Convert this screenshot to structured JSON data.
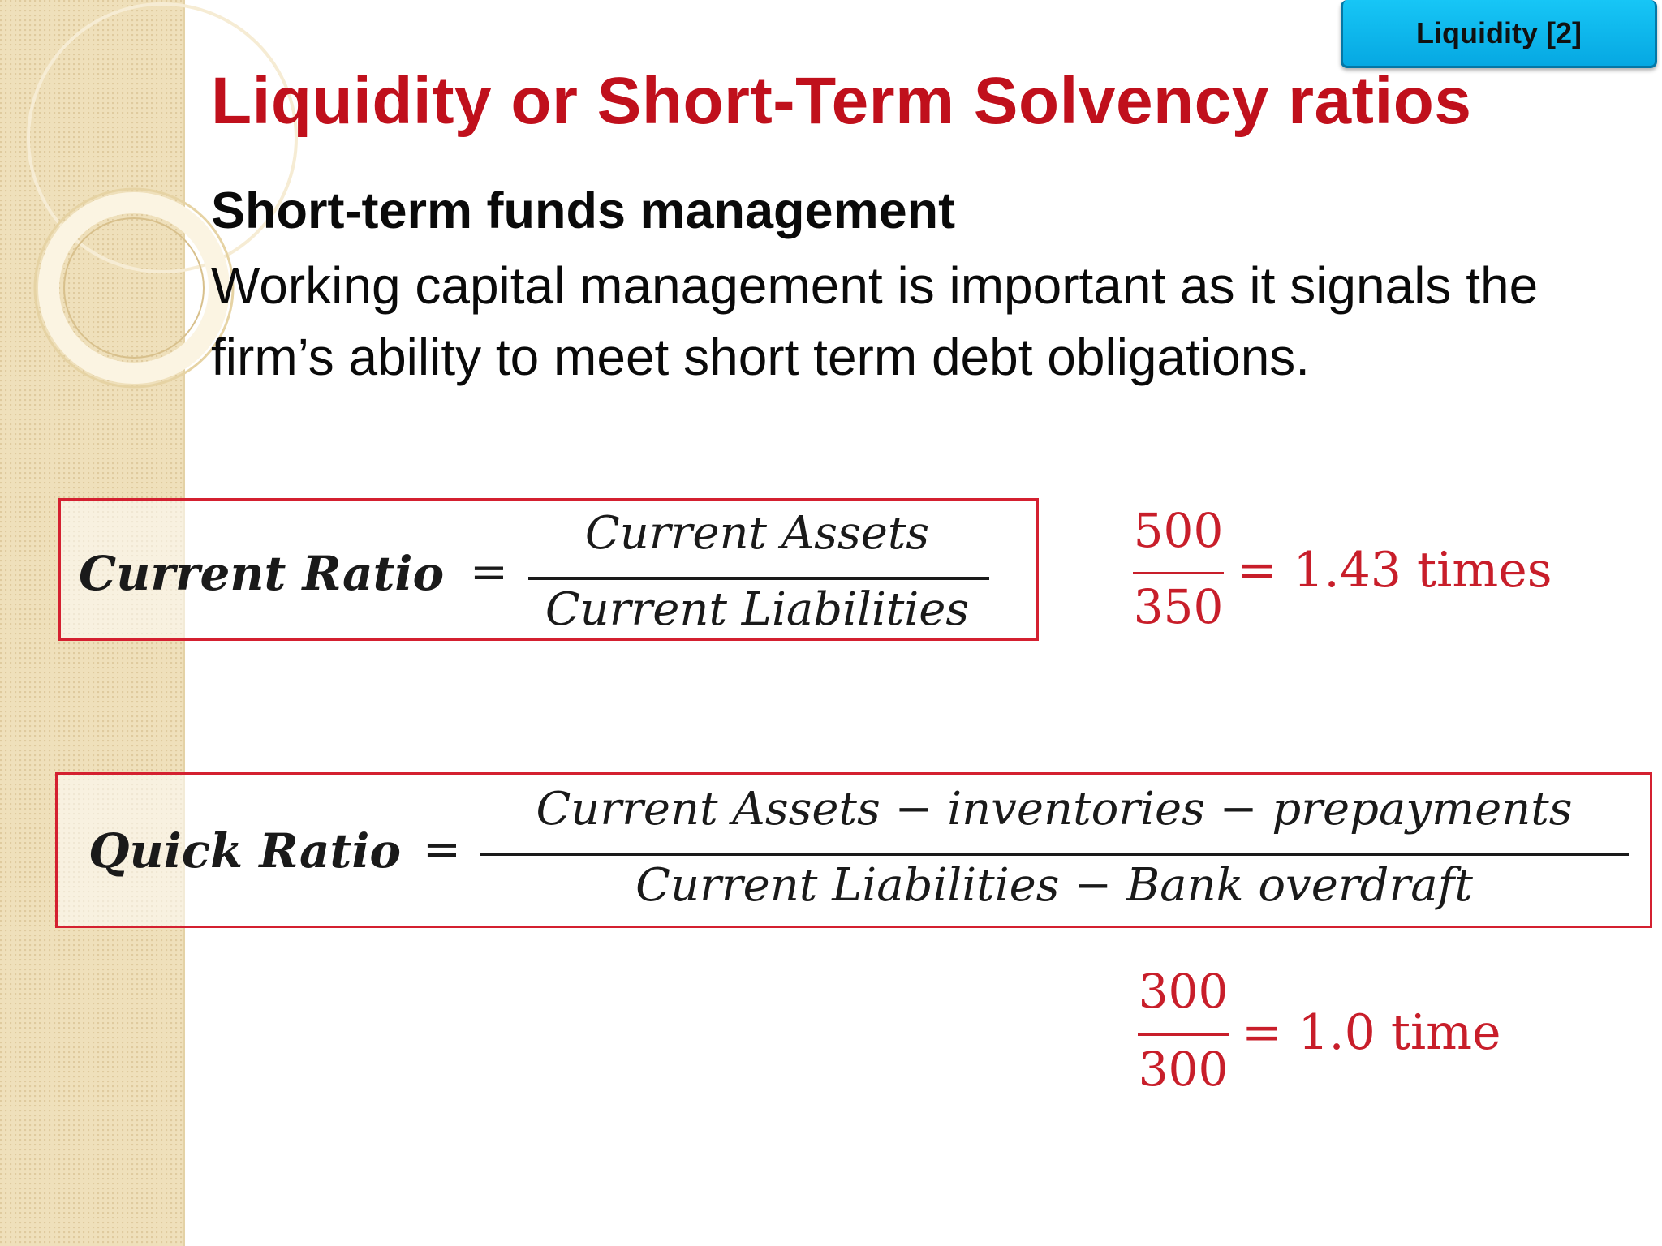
{
  "tag": {
    "label": "Liquidity [2]"
  },
  "title": "Liquidity or Short-Term Solvency ratios",
  "subheading": "Short-term funds management",
  "body": "Working capital management is important as it signals the firm’s ability to meet short term debt obligations.",
  "current_ratio": {
    "lhs": "Current Ratio",
    "equals": "=",
    "numerator": "Current Assets",
    "denominator": "Current Liabilities",
    "example": {
      "numerator": "500",
      "denominator": "350",
      "result": "= 1.43 times"
    }
  },
  "quick_ratio": {
    "lhs": "Quick Ratio",
    "equals": "=",
    "numerator": "Current Assets − inventories −  prepayments",
    "denominator": "Current Liabilities − Bank overdraft",
    "example": {
      "numerator": "300",
      "denominator": "300",
      "result": "= 1.0 time"
    }
  },
  "colors": {
    "title": "#c0101c",
    "box_border": "#d42030",
    "result": "#c81e2a",
    "tag": "#06a8e2",
    "side_band": "#efe0bb"
  }
}
